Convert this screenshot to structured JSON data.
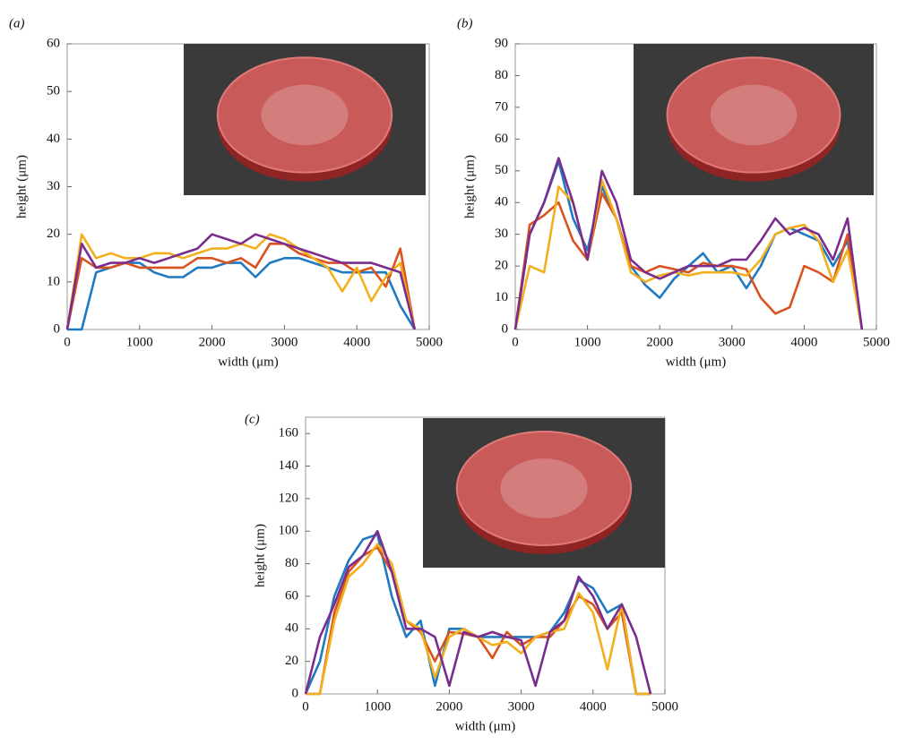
{
  "chart_data": [
    {
      "type": "line",
      "label": "(a)",
      "xlabel": "width (μm)",
      "ylabel": "height (μm)",
      "x": [
        0,
        200,
        400,
        600,
        800,
        1000,
        1200,
        1400,
        1600,
        1800,
        2000,
        2200,
        2400,
        2600,
        2800,
        3000,
        3200,
        3400,
        3600,
        3800,
        4000,
        4200,
        4400,
        4600,
        4800
      ],
      "xlim": [
        0,
        5000
      ],
      "xticks": [
        0,
        1000,
        2000,
        3000,
        4000,
        5000
      ],
      "ylim": [
        0,
        60
      ],
      "yticks": [
        0,
        10,
        20,
        30,
        40,
        50,
        60
      ],
      "series": [
        {
          "color": "#1f7ac2",
          "values": [
            0,
            0,
            12,
            13,
            14,
            14,
            12,
            11,
            11,
            13,
            13,
            14,
            14,
            11,
            14,
            15,
            15,
            14,
            13,
            12,
            12,
            12,
            12,
            5,
            0
          ]
        },
        {
          "color": "#d9531e",
          "values": [
            0,
            15,
            13,
            13,
            14,
            13,
            13,
            13,
            13,
            15,
            15,
            14,
            15,
            13,
            18,
            18,
            16,
            15,
            14,
            14,
            12,
            13,
            9,
            17,
            0
          ]
        },
        {
          "color": "#f2b01e",
          "values": [
            0,
            20,
            15,
            16,
            15,
            15,
            16,
            16,
            15,
            16,
            17,
            17,
            18,
            17,
            20,
            19,
            17,
            15,
            13,
            8,
            13,
            6,
            11,
            14,
            0
          ]
        },
        {
          "color": "#7b2d8e",
          "values": [
            0,
            18,
            13,
            14,
            14,
            15,
            14,
            15,
            16,
            17,
            20,
            19,
            18,
            20,
            19,
            18,
            17,
            16,
            15,
            14,
            14,
            14,
            13,
            12,
            0
          ]
        }
      ]
    },
    {
      "type": "line",
      "label": "(b)",
      "xlabel": "width (μm)",
      "ylabel": "height (μm)",
      "x": [
        0,
        200,
        400,
        600,
        800,
        1000,
        1200,
        1400,
        1600,
        1800,
        2000,
        2200,
        2400,
        2600,
        2800,
        3000,
        3200,
        3400,
        3600,
        3800,
        4000,
        4200,
        4400,
        4600,
        4800
      ],
      "xlim": [
        0,
        5000
      ],
      "xticks": [
        0,
        1000,
        2000,
        3000,
        4000,
        5000
      ],
      "ylim": [
        0,
        90
      ],
      "yticks": [
        0,
        10,
        20,
        30,
        40,
        50,
        60,
        70,
        80,
        90
      ],
      "series": [
        {
          "color": "#1f7ac2",
          "values": [
            0,
            30,
            40,
            53,
            35,
            25,
            45,
            35,
            20,
            14,
            10,
            16,
            20,
            24,
            18,
            20,
            13,
            20,
            30,
            32,
            30,
            28,
            20,
            28,
            0
          ]
        },
        {
          "color": "#d9531e",
          "values": [
            0,
            33,
            36,
            40,
            28,
            22,
            43,
            35,
            20,
            18,
            20,
            19,
            18,
            21,
            20,
            20,
            19,
            10,
            5,
            7,
            20,
            18,
            15,
            30,
            0
          ]
        },
        {
          "color": "#f2b01e",
          "values": [
            0,
            20,
            18,
            45,
            40,
            22,
            47,
            35,
            18,
            15,
            17,
            18,
            17,
            18,
            18,
            18,
            17,
            22,
            30,
            32,
            33,
            28,
            15,
            25,
            0
          ]
        },
        {
          "color": "#7b2d8e",
          "values": [
            0,
            30,
            40,
            54,
            40,
            22,
            50,
            40,
            22,
            18,
            16,
            18,
            20,
            20,
            20,
            22,
            22,
            28,
            35,
            30,
            32,
            30,
            22,
            35,
            0
          ]
        }
      ]
    },
    {
      "type": "line",
      "label": "(c)",
      "xlabel": "width (μm)",
      "ylabel": "height (μm)",
      "x": [
        0,
        200,
        400,
        600,
        800,
        1000,
        1200,
        1400,
        1600,
        1800,
        2000,
        2200,
        2400,
        2600,
        2800,
        3000,
        3200,
        3400,
        3600,
        3800,
        4000,
        4200,
        4400,
        4600,
        4800
      ],
      "xlim": [
        0,
        5000
      ],
      "xticks": [
        0,
        1000,
        2000,
        3000,
        4000,
        5000
      ],
      "ylim": [
        0,
        170
      ],
      "yticks": [
        0,
        20,
        40,
        60,
        80,
        100,
        120,
        140,
        160
      ],
      "series": [
        {
          "color": "#1f7ac2",
          "values": [
            0,
            20,
            60,
            82,
            95,
            98,
            60,
            35,
            45,
            5,
            40,
            40,
            35,
            35,
            35,
            35,
            35,
            38,
            50,
            70,
            65,
            50,
            55,
            0,
            0
          ]
        },
        {
          "color": "#d9531e",
          "values": [
            0,
            0,
            50,
            75,
            85,
            90,
            75,
            45,
            38,
            20,
            38,
            37,
            35,
            22,
            38,
            30,
            35,
            35,
            45,
            60,
            55,
            40,
            50,
            0,
            0
          ]
        },
        {
          "color": "#f2b01e",
          "values": [
            0,
            0,
            45,
            72,
            80,
            92,
            80,
            45,
            40,
            10,
            35,
            40,
            35,
            30,
            32,
            25,
            35,
            38,
            40,
            62,
            50,
            15,
            55,
            0,
            0
          ]
        },
        {
          "color": "#7b2d8e",
          "values": [
            0,
            35,
            55,
            78,
            85,
            100,
            75,
            40,
            40,
            35,
            5,
            38,
            35,
            38,
            35,
            33,
            5,
            38,
            45,
            72,
            60,
            40,
            55,
            35,
            0
          ]
        }
      ]
    }
  ]
}
